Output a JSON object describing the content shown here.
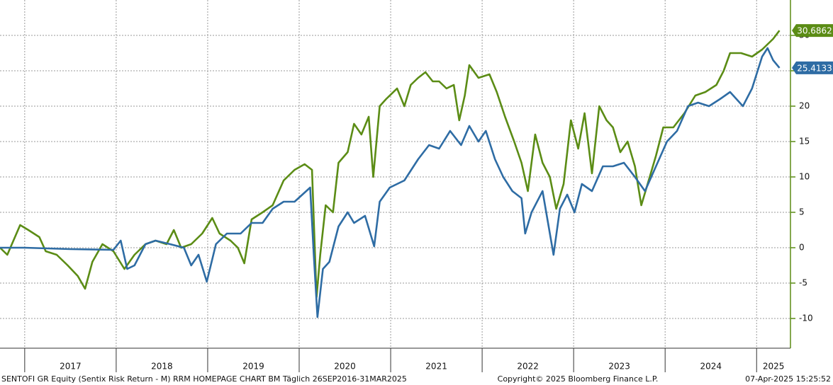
{
  "chart_data": {
    "type": "line",
    "footer_left": "SENTOFI GR Equity (Sentix Risk Return - M) RRM HOMEPAGE CHART BM  Täglich 26SEP2016-31MAR2025",
    "footer_center": "Copyright© 2025 Bloomberg Finance L.P.",
    "footer_right": "07-Apr-2025 15:25:52",
    "xlim": [
      2016.73,
      2025.37
    ],
    "xticks": [
      2017,
      2018,
      2019,
      2020,
      2021,
      2022,
      2023,
      2024,
      2025
    ],
    "ylim": [
      -14.2,
      35
    ],
    "yticks": [
      -10,
      -5,
      0,
      5,
      10,
      15,
      20,
      25,
      30
    ],
    "grid": true,
    "axis_color": "#5b8c15",
    "series": [
      {
        "color": "#5b8c15",
        "x": [
          2016.73,
          2016.81,
          2016.95,
          2017.04,
          2017.16,
          2017.23,
          2017.35,
          2017.47,
          2017.58,
          2017.66,
          2017.74,
          2017.85,
          2017.97,
          2018.09,
          2018.2,
          2018.32,
          2018.43,
          2018.55,
          2018.63,
          2018.71,
          2018.82,
          2018.94,
          2019.05,
          2019.13,
          2019.25,
          2019.33,
          2019.4,
          2019.48,
          2019.6,
          2019.71,
          2019.83,
          2019.95,
          2020.06,
          2020.14,
          2020.19,
          2020.23,
          2020.29,
          2020.37,
          2020.43,
          2020.53,
          2020.6,
          2020.68,
          2020.76,
          2020.81,
          2020.88,
          2020.95,
          2021.07,
          2021.15,
          2021.22,
          2021.3,
          2021.38,
          2021.46,
          2021.53,
          2021.61,
          2021.69,
          2021.75,
          2021.81,
          2021.86,
          2021.96,
          2022.08,
          2022.16,
          2022.25,
          2022.35,
          2022.43,
          2022.5,
          2022.58,
          2022.66,
          2022.74,
          2022.81,
          2022.89,
          2022.97,
          2023.05,
          2023.12,
          2023.2,
          2023.28,
          2023.36,
          2023.43,
          2023.51,
          2023.59,
          2023.67,
          2023.74,
          2023.82,
          2023.9,
          2023.98,
          2024.09,
          2024.21,
          2024.33,
          2024.44,
          2024.56,
          2024.64,
          2024.71,
          2024.83,
          2024.95,
          2025.06,
          2025.18,
          2025.25
        ],
        "values": [
          0,
          -1,
          3.2,
          2.5,
          1.5,
          -0.5,
          -1,
          -2.5,
          -4,
          -5.8,
          -2,
          0.5,
          -0.5,
          -3,
          -1,
          0.5,
          1,
          0.5,
          2.5,
          0,
          0.5,
          2,
          4.2,
          2,
          1,
          0,
          -2.2,
          4,
          5,
          6,
          9.5,
          11,
          11.8,
          11,
          -7,
          -1,
          6,
          5,
          12,
          13.5,
          17.5,
          16,
          18.5,
          10,
          20,
          21,
          22.5,
          20,
          23,
          24,
          24.8,
          23.5,
          23.5,
          22.5,
          23,
          18,
          21.5,
          25.8,
          24,
          24.5,
          22,
          18.5,
          15,
          12,
          8,
          16,
          12,
          10,
          5.5,
          9,
          18,
          14,
          19,
          10.5,
          20,
          18,
          17,
          13.5,
          15,
          11.5,
          6,
          9.5,
          13,
          17,
          17,
          19,
          21.5,
          22,
          23,
          25,
          27.5,
          27.5,
          27,
          28,
          29.5,
          30.6862
        ]
      },
      {
        "color": "#2e6ca4",
        "x": [
          2016.73,
          2017.0,
          2017.5,
          2017.97,
          2018.05,
          2018.12,
          2018.2,
          2018.32,
          2018.43,
          2018.59,
          2018.74,
          2018.82,
          2018.9,
          2018.99,
          2019.09,
          2019.21,
          2019.36,
          2019.48,
          2019.6,
          2019.71,
          2019.83,
          2019.95,
          2020.12,
          2020.16,
          2020.2,
          2020.26,
          2020.33,
          2020.43,
          2020.53,
          2020.6,
          2020.72,
          2020.82,
          2020.88,
          2020.99,
          2021.15,
          2021.3,
          2021.42,
          2021.53,
          2021.65,
          2021.77,
          2021.86,
          2021.96,
          2022.04,
          2022.14,
          2022.23,
          2022.33,
          2022.43,
          2022.47,
          2022.54,
          2022.66,
          2022.78,
          2022.85,
          2022.93,
          2023.01,
          2023.09,
          2023.2,
          2023.32,
          2023.43,
          2023.55,
          2023.67,
          2023.78,
          2023.9,
          2024.02,
          2024.13,
          2024.25,
          2024.36,
          2024.48,
          2024.6,
          2024.71,
          2024.85,
          2024.95,
          2025.06,
          2025.12,
          2025.18,
          2025.25
        ],
        "values": [
          0,
          0,
          -0.2,
          -0.3,
          1,
          -3,
          -2.5,
          0.5,
          1,
          0.5,
          0,
          -2.5,
          -1,
          -4.8,
          0.5,
          2,
          2,
          3.5,
          3.5,
          5.5,
          6.5,
          6.5,
          8.5,
          -1,
          -9.8,
          -3,
          -2,
          3,
          5,
          3.5,
          4.5,
          0.2,
          6.5,
          8.5,
          9.5,
          12.5,
          14.5,
          14,
          16.5,
          14.5,
          17.2,
          15,
          16.5,
          12.5,
          10,
          8,
          7,
          2,
          5,
          8,
          -1,
          5.5,
          7.5,
          5,
          9,
          8,
          11.5,
          11.5,
          12,
          10,
          8,
          11.5,
          15,
          16.5,
          20,
          20.5,
          20,
          21,
          22,
          20,
          22.5,
          27,
          28.2,
          26.5,
          25.4133
        ]
      }
    ]
  }
}
